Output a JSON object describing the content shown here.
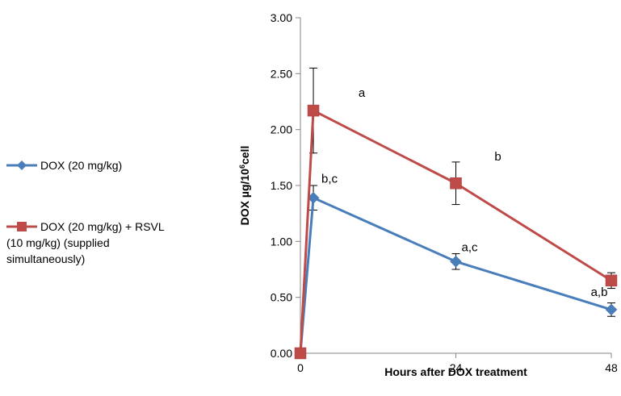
{
  "chart_data": {
    "type": "line",
    "xlabel": "Hours after DOX treatment",
    "ylabel_main": "DOX µg/10",
    "ylabel_sup": "6",
    "ylabel_tail": "cell",
    "xlim": [
      0,
      48
    ],
    "ylim": [
      0,
      3
    ],
    "xticks": [
      0,
      24,
      48
    ],
    "yticks": [
      "0.00",
      "0.50",
      "1.00",
      "1.50",
      "2.00",
      "2.50",
      "3.00"
    ],
    "grid": false,
    "legend_position": "left",
    "series": [
      {
        "name": "DOX (20 mg/kg)",
        "legend_lines": [
          "DOX (20 mg/kg)"
        ],
        "color": "#4a7ebb",
        "marker": "diamond",
        "x": [
          0,
          2,
          24,
          48
        ],
        "y": [
          0.0,
          1.39,
          0.82,
          0.39
        ],
        "error": [
          0,
          0.11,
          0.07,
          0.06
        ],
        "annotations": [
          "",
          "b,c",
          "a,c",
          "a,b"
        ]
      },
      {
        "name": "DOX  (20 mg/kg) + RSVL (10 mg/kg) (supplied simultaneously)",
        "legend_lines": [
          "DOX  (20 mg/kg) + RSVL",
          "(10 mg/kg) (supplied",
          "simultaneously)"
        ],
        "color": "#be4b48",
        "marker": "square",
        "x": [
          0,
          2,
          24,
          48
        ],
        "y": [
          0.0,
          2.17,
          1.52,
          0.65
        ],
        "error": [
          0,
          0.38,
          0.19,
          0.07
        ],
        "annotations": [
          "",
          "a",
          "b",
          ""
        ]
      }
    ]
  }
}
